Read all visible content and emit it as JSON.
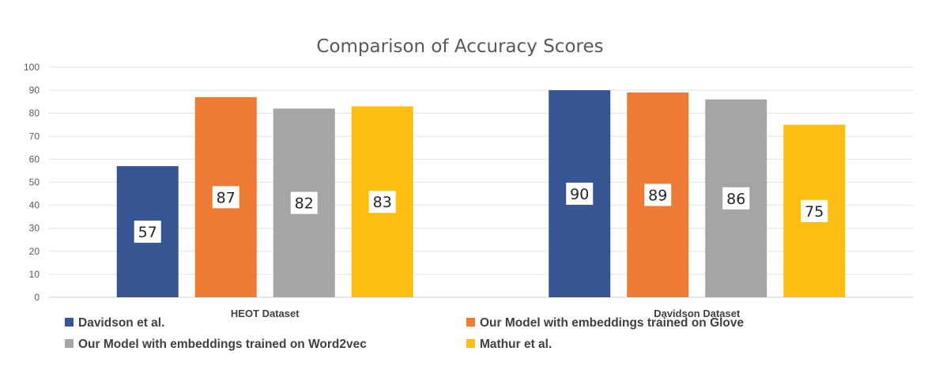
{
  "chart_data": {
    "type": "bar",
    "title": "Comparison of Accuracy Scores",
    "categories": [
      "HEOT Dataset",
      "Davidson Dataset"
    ],
    "series": [
      {
        "name": "Davidson et al.",
        "values": [
          57,
          90
        ],
        "color": "#365693"
      },
      {
        "name": "Our Model with embeddings trained on Glove",
        "values": [
          87,
          89
        ],
        "color": "#ED7A35"
      },
      {
        "name": "Our Model with embeddings trained on Word2vec",
        "values": [
          82,
          86
        ],
        "color": "#A5A5A5"
      },
      {
        "name": "Mathur et al.",
        "values": [
          83,
          75
        ],
        "color": "#FDBE11"
      }
    ],
    "ylim": [
      0,
      100
    ],
    "yticks": [
      0,
      10,
      20,
      30,
      40,
      50,
      60,
      70,
      80,
      90,
      100
    ],
    "grid": true,
    "data_labels": true,
    "legend_position": "bottom-left"
  }
}
